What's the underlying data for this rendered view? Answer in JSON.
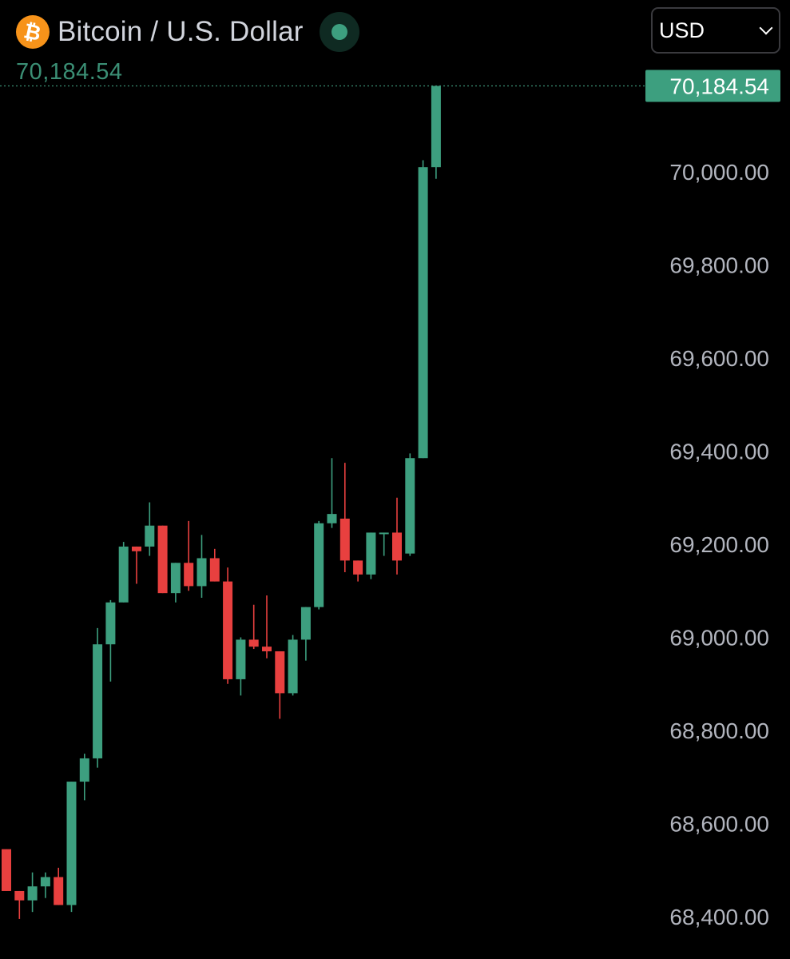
{
  "header": {
    "coin_icon": "bitcoin-icon",
    "title": "Bitcoin / U.S. Dollar",
    "live_status_icon": "live-dot-icon",
    "last_price": "70,184.54"
  },
  "currency_select": {
    "value": "USD",
    "icon": "chevron-down-icon"
  },
  "colors": {
    "up": "#3d9f7f",
    "down": "#e8403f",
    "background": "#000000",
    "price_line": "#3b8f75",
    "tick_text": "#b2b5be"
  },
  "chart_data": {
    "type": "candlestick",
    "symbol": "Bitcoin / U.S. Dollar",
    "currency": "USD",
    "y_axis": {
      "ticks": [
        "70,000.00",
        "69,800.00",
        "69,600.00",
        "69,400.00",
        "69,200.00",
        "69,000.00",
        "68,800.00",
        "68,600.00",
        "68,400.00"
      ],
      "tick_values": [
        70000,
        69800,
        69600,
        69400,
        69200,
        69000,
        68800,
        68600,
        68400
      ],
      "range": [
        68310,
        70340
      ]
    },
    "last_price": 70184.54,
    "last_price_label": "70,184.54",
    "grid": false,
    "candles": [
      {
        "o": 68545,
        "h": 68545,
        "l": 68455,
        "c": 68455
      },
      {
        "o": 68455,
        "h": 68455,
        "l": 68395,
        "c": 68435
      },
      {
        "o": 68435,
        "h": 68495,
        "l": 68410,
        "c": 68465
      },
      {
        "o": 68465,
        "h": 68495,
        "l": 68440,
        "c": 68485
      },
      {
        "o": 68485,
        "h": 68505,
        "l": 68425,
        "c": 68425
      },
      {
        "o": 68425,
        "h": 68690,
        "l": 68410,
        "c": 68690
      },
      {
        "o": 68690,
        "h": 68750,
        "l": 68650,
        "c": 68740
      },
      {
        "o": 68740,
        "h": 69020,
        "l": 68720,
        "c": 68985
      },
      {
        "o": 68985,
        "h": 69080,
        "l": 68905,
        "c": 69075
      },
      {
        "o": 69075,
        "h": 69205,
        "l": 69075,
        "c": 69195
      },
      {
        "o": 69195,
        "h": 69195,
        "l": 69115,
        "c": 69185
      },
      {
        "o": 69195,
        "h": 69290,
        "l": 69175,
        "c": 69240
      },
      {
        "o": 69240,
        "h": 69240,
        "l": 69095,
        "c": 69095
      },
      {
        "o": 69095,
        "h": 69160,
        "l": 69075,
        "c": 69160
      },
      {
        "o": 69160,
        "h": 69250,
        "l": 69100,
        "c": 69110
      },
      {
        "o": 69110,
        "h": 69220,
        "l": 69085,
        "c": 69170
      },
      {
        "o": 69170,
        "h": 69190,
        "l": 69120,
        "c": 69120
      },
      {
        "o": 69120,
        "h": 69150,
        "l": 68900,
        "c": 68910
      },
      {
        "o": 68910,
        "h": 69000,
        "l": 68875,
        "c": 68995
      },
      {
        "o": 68995,
        "h": 69070,
        "l": 68975,
        "c": 68980
      },
      {
        "o": 68980,
        "h": 69090,
        "l": 68955,
        "c": 68970
      },
      {
        "o": 68970,
        "h": 68970,
        "l": 68825,
        "c": 68880
      },
      {
        "o": 68880,
        "h": 69005,
        "l": 68875,
        "c": 68995
      },
      {
        "o": 68995,
        "h": 69065,
        "l": 68950,
        "c": 69065
      },
      {
        "o": 69065,
        "h": 69250,
        "l": 69060,
        "c": 69245
      },
      {
        "o": 69245,
        "h": 69385,
        "l": 69235,
        "c": 69265
      },
      {
        "o": 69255,
        "h": 69375,
        "l": 69140,
        "c": 69165
      },
      {
        "o": 69165,
        "h": 69165,
        "l": 69120,
        "c": 69135
      },
      {
        "o": 69135,
        "h": 69225,
        "l": 69125,
        "c": 69225
      },
      {
        "o": 69225,
        "h": 69225,
        "l": 69175,
        "c": 69225
      },
      {
        "o": 69225,
        "h": 69300,
        "l": 69135,
        "c": 69165
      },
      {
        "o": 69180,
        "h": 69395,
        "l": 69175,
        "c": 69385
      },
      {
        "o": 69385,
        "h": 70025,
        "l": 69385,
        "c": 70010
      },
      {
        "o": 70010,
        "h": 70184.54,
        "l": 69985,
        "c": 70184.54
      }
    ]
  }
}
